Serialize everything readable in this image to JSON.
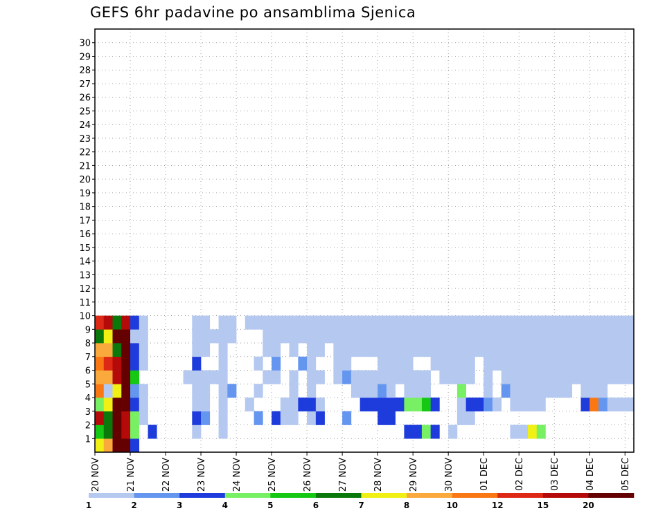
{
  "chart_data": {
    "type": "heatmap",
    "title": "GEFS 6hr padavine po ansamblima Sjenica",
    "ylabel": "",
    "xlabel": "",
    "y_ticks": [
      "1",
      "2",
      "3",
      "4",
      "5",
      "6",
      "7",
      "8",
      "9",
      "10",
      "11",
      "12",
      "13",
      "14",
      "15",
      "16",
      "17",
      "18",
      "19",
      "20",
      "21",
      "22",
      "23",
      "24",
      "25",
      "26",
      "27",
      "28",
      "29",
      "30"
    ],
    "x_ticks": [
      "20 NOV",
      "21 NOV",
      "22 NOV",
      "23 NOV",
      "24 NOV",
      "25 NOV",
      "26 NOV",
      "27 NOV",
      "28 NOV",
      "29 NOV",
      "30 NOV",
      "01 DEC",
      "02 DEC",
      "03 DEC",
      "04 DEC",
      "05 DEC"
    ],
    "steps": 61,
    "colorbar": {
      "colors": [
        "#b4c8f0",
        "#6496f0",
        "#1e3cdc",
        "#78f064",
        "#14c814",
        "#0a780a",
        "#f0f014",
        "#faaa3c",
        "#fa7814",
        "#dc2814",
        "#b40a0a",
        "#640000"
      ],
      "labels": [
        "1",
        "2",
        "3",
        "4",
        "5",
        "6",
        "7",
        "8",
        "10",
        "12",
        "15",
        "20"
      ]
    },
    "cells": [
      [
        0,
        0,
        6
      ],
      [
        0,
        1,
        7
      ],
      [
        0,
        2,
        11
      ],
      [
        0,
        3,
        11
      ],
      [
        0,
        4,
        2
      ],
      [
        1,
        0,
        4
      ],
      [
        1,
        1,
        5
      ],
      [
        1,
        2,
        11
      ],
      [
        1,
        3,
        10
      ],
      [
        1,
        4,
        3
      ],
      [
        1,
        6,
        2
      ],
      [
        1,
        11,
        0
      ],
      [
        1,
        14,
        0
      ],
      [
        1,
        35,
        2
      ],
      [
        1,
        36,
        2
      ],
      [
        1,
        37,
        3
      ],
      [
        1,
        38,
        2
      ],
      [
        1,
        40,
        0
      ],
      [
        1,
        47,
        0
      ],
      [
        1,
        48,
        0
      ],
      [
        1,
        49,
        6
      ],
      [
        1,
        50,
        3
      ],
      [
        2,
        0,
        10
      ],
      [
        2,
        1,
        5
      ],
      [
        2,
        2,
        11
      ],
      [
        2,
        3,
        10
      ],
      [
        2,
        4,
        3
      ],
      [
        2,
        5,
        0
      ],
      [
        2,
        11,
        2
      ],
      [
        2,
        12,
        1
      ],
      [
        2,
        14,
        0
      ],
      [
        2,
        18,
        1
      ],
      [
        2,
        20,
        2
      ],
      [
        2,
        21,
        0
      ],
      [
        2,
        22,
        0
      ],
      [
        2,
        24,
        0
      ],
      [
        2,
        25,
        2
      ],
      [
        2,
        28,
        1
      ],
      [
        2,
        32,
        2
      ],
      [
        2,
        33,
        2
      ],
      [
        2,
        41,
        0
      ],
      [
        2,
        42,
        0
      ],
      [
        3,
        0,
        3
      ],
      [
        3,
        1,
        6
      ],
      [
        3,
        2,
        11
      ],
      [
        3,
        3,
        11
      ],
      [
        3,
        4,
        2
      ],
      [
        3,
        5,
        0
      ],
      [
        3,
        11,
        0
      ],
      [
        3,
        12,
        0
      ],
      [
        3,
        14,
        0
      ],
      [
        3,
        17,
        0
      ],
      [
        3,
        21,
        0
      ],
      [
        3,
        22,
        0
      ],
      [
        3,
        23,
        2
      ],
      [
        3,
        24,
        2
      ],
      [
        3,
        25,
        0
      ],
      [
        3,
        30,
        2
      ],
      [
        3,
        31,
        2
      ],
      [
        3,
        32,
        2
      ],
      [
        3,
        33,
        2
      ],
      [
        3,
        34,
        2
      ],
      [
        3,
        35,
        3
      ],
      [
        3,
        36,
        3
      ],
      [
        3,
        37,
        4
      ],
      [
        3,
        38,
        2
      ],
      [
        3,
        41,
        0
      ],
      [
        3,
        42,
        2
      ],
      [
        3,
        43,
        2
      ],
      [
        3,
        44,
        1
      ],
      [
        3,
        45,
        0
      ],
      [
        3,
        47,
        0
      ],
      [
        3,
        48,
        0
      ],
      [
        3,
        49,
        0
      ],
      [
        3,
        50,
        0
      ],
      [
        3,
        55,
        2
      ],
      [
        3,
        56,
        8
      ],
      [
        3,
        57,
        1
      ],
      [
        3,
        58,
        0
      ],
      [
        3,
        59,
        0
      ],
      [
        3,
        60,
        0
      ],
      [
        4,
        0,
        8
      ],
      [
        4,
        1,
        0
      ],
      [
        4,
        2,
        6
      ],
      [
        4,
        3,
        11
      ],
      [
        4,
        4,
        1
      ],
      [
        4,
        5,
        0
      ],
      [
        4,
        11,
        0
      ],
      [
        4,
        12,
        0
      ],
      [
        4,
        14,
        0
      ],
      [
        4,
        15,
        1
      ],
      [
        4,
        18,
        0
      ],
      [
        4,
        22,
        0
      ],
      [
        4,
        24,
        0
      ],
      [
        4,
        29,
        0
      ],
      [
        4,
        30,
        0
      ],
      [
        4,
        31,
        0
      ],
      [
        4,
        32,
        1
      ],
      [
        4,
        33,
        0
      ],
      [
        4,
        35,
        0
      ],
      [
        4,
        36,
        0
      ],
      [
        4,
        37,
        0
      ],
      [
        4,
        41,
        3
      ],
      [
        4,
        44,
        0
      ],
      [
        4,
        46,
        1
      ],
      [
        4,
        47,
        0
      ],
      [
        4,
        48,
        0
      ],
      [
        4,
        49,
        0
      ],
      [
        4,
        50,
        0
      ],
      [
        4,
        51,
        0
      ],
      [
        4,
        52,
        0
      ],
      [
        4,
        53,
        0
      ],
      [
        4,
        55,
        0
      ],
      [
        4,
        56,
        0
      ],
      [
        4,
        57,
        0
      ],
      [
        5,
        0,
        7
      ],
      [
        5,
        1,
        7
      ],
      [
        5,
        2,
        10
      ],
      [
        5,
        3,
        11
      ],
      [
        5,
        4,
        4
      ],
      [
        5,
        10,
        0
      ],
      [
        5,
        11,
        0
      ],
      [
        5,
        12,
        0
      ],
      [
        5,
        13,
        0
      ],
      [
        5,
        14,
        0
      ],
      [
        5,
        19,
        0
      ],
      [
        5,
        20,
        0
      ],
      [
        5,
        22,
        0
      ],
      [
        5,
        24,
        0
      ],
      [
        5,
        25,
        0
      ],
      [
        5,
        27,
        0
      ],
      [
        5,
        28,
        1
      ],
      [
        5,
        29,
        0
      ],
      [
        5,
        30,
        0
      ],
      [
        5,
        31,
        0
      ],
      [
        5,
        32,
        0
      ],
      [
        5,
        33,
        0
      ],
      [
        5,
        34,
        0
      ],
      [
        5,
        35,
        0
      ],
      [
        5,
        36,
        0
      ],
      [
        5,
        37,
        0
      ],
      [
        5,
        39,
        0
      ],
      [
        5,
        40,
        0
      ],
      [
        5,
        41,
        0
      ],
      [
        5,
        42,
        0
      ],
      [
        5,
        44,
        0
      ],
      [
        5,
        46,
        0
      ],
      [
        5,
        47,
        0
      ],
      [
        5,
        48,
        0
      ],
      [
        5,
        49,
        0
      ],
      [
        5,
        50,
        0
      ],
      [
        5,
        51,
        0
      ],
      [
        5,
        52,
        0
      ],
      [
        5,
        53,
        0
      ],
      [
        5,
        54,
        0
      ],
      [
        5,
        55,
        0
      ],
      [
        5,
        56,
        0
      ],
      [
        5,
        57,
        0
      ],
      [
        5,
        58,
        0
      ],
      [
        5,
        59,
        0
      ],
      [
        5,
        60,
        0
      ],
      [
        6,
        0,
        8
      ],
      [
        6,
        1,
        9
      ],
      [
        6,
        2,
        10
      ],
      [
        6,
        3,
        11
      ],
      [
        6,
        4,
        2
      ],
      [
        6,
        5,
        0
      ],
      [
        6,
        11,
        2
      ],
      [
        6,
        14,
        0
      ],
      [
        6,
        18,
        0
      ],
      [
        6,
        20,
        1
      ],
      [
        6,
        23,
        1
      ],
      [
        6,
        24,
        0
      ],
      [
        6,
        27,
        0
      ],
      [
        6,
        28,
        0
      ],
      [
        6,
        32,
        0
      ],
      [
        6,
        33,
        0
      ],
      [
        6,
        34,
        0
      ],
      [
        6,
        35,
        0
      ],
      [
        6,
        38,
        0
      ],
      [
        6,
        39,
        0
      ],
      [
        6,
        40,
        0
      ],
      [
        6,
        41,
        0
      ],
      [
        6,
        42,
        0
      ],
      [
        6,
        44,
        0
      ],
      [
        6,
        45,
        0
      ],
      [
        6,
        46,
        0
      ],
      [
        6,
        47,
        0
      ],
      [
        6,
        48,
        0
      ],
      [
        6,
        49,
        0
      ],
      [
        6,
        50,
        0
      ],
      [
        6,
        51,
        0
      ],
      [
        6,
        52,
        0
      ],
      [
        6,
        53,
        0
      ],
      [
        6,
        54,
        0
      ],
      [
        6,
        55,
        0
      ],
      [
        6,
        56,
        0
      ],
      [
        6,
        57,
        0
      ],
      [
        6,
        58,
        0
      ],
      [
        6,
        59,
        0
      ],
      [
        6,
        60,
        0
      ],
      [
        7,
        0,
        7
      ],
      [
        7,
        1,
        7
      ],
      [
        7,
        2,
        5
      ],
      [
        7,
        3,
        11
      ],
      [
        7,
        4,
        2
      ],
      [
        7,
        5,
        0
      ],
      [
        7,
        11,
        0
      ],
      [
        7,
        12,
        0
      ],
      [
        7,
        14,
        0
      ],
      [
        7,
        19,
        0
      ],
      [
        7,
        20,
        0
      ],
      [
        7,
        22,
        0
      ],
      [
        7,
        24,
        0
      ],
      [
        7,
        25,
        0
      ],
      [
        7,
        27,
        0
      ],
      [
        7,
        28,
        0
      ],
      [
        7,
        29,
        0
      ],
      [
        7,
        30,
        0
      ],
      [
        7,
        31,
        0
      ],
      [
        7,
        32,
        0
      ],
      [
        7,
        33,
        0
      ],
      [
        7,
        34,
        0
      ],
      [
        7,
        35,
        0
      ],
      [
        7,
        36,
        0
      ],
      [
        7,
        37,
        0
      ],
      [
        7,
        38,
        0
      ],
      [
        7,
        39,
        0
      ],
      [
        7,
        40,
        0
      ],
      [
        7,
        41,
        0
      ],
      [
        7,
        42,
        0
      ],
      [
        7,
        43,
        0
      ],
      [
        7,
        44,
        0
      ],
      [
        7,
        45,
        0
      ],
      [
        7,
        46,
        0
      ],
      [
        7,
        47,
        0
      ],
      [
        7,
        48,
        0
      ],
      [
        7,
        49,
        0
      ],
      [
        7,
        50,
        0
      ],
      [
        7,
        51,
        0
      ],
      [
        7,
        52,
        0
      ],
      [
        7,
        53,
        0
      ],
      [
        7,
        54,
        0
      ],
      [
        7,
        55,
        0
      ],
      [
        7,
        56,
        0
      ],
      [
        7,
        57,
        0
      ],
      [
        7,
        58,
        0
      ],
      [
        7,
        59,
        0
      ],
      [
        7,
        60,
        0
      ],
      [
        8,
        0,
        5
      ],
      [
        8,
        1,
        6
      ],
      [
        8,
        2,
        11
      ],
      [
        8,
        3,
        11
      ],
      [
        8,
        4,
        0
      ],
      [
        8,
        5,
        0
      ],
      [
        8,
        11,
        0
      ],
      [
        8,
        12,
        0
      ],
      [
        8,
        13,
        0
      ],
      [
        8,
        14,
        0
      ],
      [
        8,
        15,
        0
      ],
      [
        8,
        19,
        0
      ],
      [
        8,
        20,
        0
      ],
      [
        8,
        21,
        0
      ],
      [
        8,
        22,
        0
      ],
      [
        8,
        23,
        0
      ],
      [
        8,
        24,
        0
      ],
      [
        8,
        25,
        0
      ],
      [
        8,
        26,
        0
      ],
      [
        8,
        27,
        0
      ],
      [
        8,
        28,
        0
      ],
      [
        8,
        29,
        0
      ],
      [
        8,
        30,
        0
      ],
      [
        8,
        31,
        0
      ],
      [
        8,
        32,
        0
      ],
      [
        8,
        33,
        0
      ],
      [
        8,
        34,
        0
      ],
      [
        8,
        35,
        0
      ],
      [
        8,
        36,
        0
      ],
      [
        8,
        37,
        0
      ],
      [
        8,
        38,
        0
      ],
      [
        8,
        39,
        0
      ],
      [
        8,
        40,
        0
      ],
      [
        8,
        41,
        0
      ],
      [
        8,
        42,
        0
      ],
      [
        8,
        43,
        0
      ],
      [
        8,
        44,
        0
      ],
      [
        8,
        45,
        0
      ],
      [
        8,
        46,
        0
      ],
      [
        8,
        47,
        0
      ],
      [
        8,
        48,
        0
      ],
      [
        8,
        49,
        0
      ],
      [
        8,
        50,
        0
      ],
      [
        8,
        51,
        0
      ],
      [
        8,
        52,
        0
      ],
      [
        8,
        53,
        0
      ],
      [
        8,
        54,
        0
      ],
      [
        8,
        55,
        0
      ],
      [
        8,
        56,
        0
      ],
      [
        8,
        57,
        0
      ],
      [
        8,
        58,
        0
      ],
      [
        8,
        59,
        0
      ],
      [
        8,
        60,
        0
      ],
      [
        9,
        0,
        9
      ],
      [
        9,
        1,
        10
      ],
      [
        9,
        2,
        5
      ],
      [
        9,
        3,
        10
      ],
      [
        9,
        4,
        2
      ],
      [
        9,
        5,
        0
      ],
      [
        9,
        11,
        0
      ],
      [
        9,
        12,
        0
      ],
      [
        9,
        14,
        0
      ],
      [
        9,
        15,
        0
      ],
      [
        9,
        17,
        0
      ],
      [
        9,
        18,
        0
      ],
      [
        9,
        19,
        0
      ],
      [
        9,
        20,
        0
      ],
      [
        9,
        21,
        0
      ],
      [
        9,
        22,
        0
      ],
      [
        9,
        23,
        0
      ],
      [
        9,
        24,
        0
      ],
      [
        9,
        25,
        0
      ],
      [
        9,
        26,
        0
      ],
      [
        9,
        27,
        0
      ],
      [
        9,
        28,
        0
      ],
      [
        9,
        29,
        0
      ],
      [
        9,
        30,
        0
      ],
      [
        9,
        31,
        0
      ],
      [
        9,
        32,
        0
      ],
      [
        9,
        33,
        0
      ],
      [
        9,
        34,
        0
      ],
      [
        9,
        35,
        0
      ],
      [
        9,
        36,
        0
      ],
      [
        9,
        37,
        0
      ],
      [
        9,
        38,
        0
      ],
      [
        9,
        39,
        0
      ],
      [
        9,
        40,
        0
      ],
      [
        9,
        41,
        0
      ],
      [
        9,
        42,
        0
      ],
      [
        9,
        43,
        0
      ],
      [
        9,
        44,
        0
      ],
      [
        9,
        45,
        0
      ],
      [
        9,
        46,
        0
      ],
      [
        9,
        47,
        0
      ],
      [
        9,
        48,
        0
      ],
      [
        9,
        49,
        0
      ],
      [
        9,
        50,
        0
      ],
      [
        9,
        51,
        0
      ],
      [
        9,
        52,
        0
      ],
      [
        9,
        53,
        0
      ],
      [
        9,
        54,
        0
      ],
      [
        9,
        55,
        0
      ],
      [
        9,
        56,
        0
      ],
      [
        9,
        57,
        0
      ],
      [
        9,
        58,
        0
      ],
      [
        9,
        59,
        0
      ],
      [
        9,
        60,
        0
      ]
    ]
  }
}
